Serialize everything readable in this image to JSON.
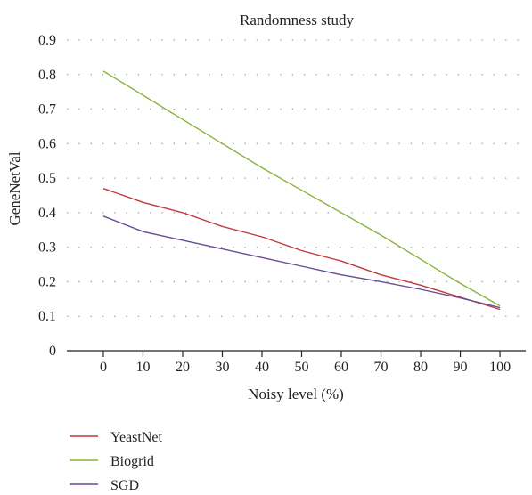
{
  "chart_data": {
    "type": "line",
    "title": "Randomness study",
    "xlabel": "Noisy level (%)",
    "ylabel": "GeneNetVal",
    "x": [
      0,
      10,
      20,
      30,
      40,
      50,
      60,
      70,
      80,
      90,
      100
    ],
    "xticks": [
      "0",
      "10",
      "20",
      "30",
      "40",
      "50",
      "60",
      "70",
      "80",
      "90",
      "100"
    ],
    "yticks": [
      "0",
      "0.1",
      "0.2",
      "0.3",
      "0.4",
      "0.5",
      "0.6",
      "0.7",
      "0.8",
      "0.9"
    ],
    "xlim": [
      -9.2,
      106.5
    ],
    "ylim": [
      0,
      0.9
    ],
    "grid": true,
    "legend_position": "bottom-left",
    "series": [
      {
        "name": "YeastNet",
        "color": "#c0393b",
        "values": [
          0.47,
          0.43,
          0.4,
          0.36,
          0.33,
          0.29,
          0.26,
          0.22,
          0.19,
          0.155,
          0.12
        ]
      },
      {
        "name": "Biogrid",
        "color": "#8ab43a",
        "values": [
          0.81,
          0.74,
          0.67,
          0.6,
          0.53,
          0.465,
          0.4,
          0.335,
          0.265,
          0.195,
          0.13
        ]
      },
      {
        "name": "SGD",
        "color": "#6a4c94",
        "values": [
          0.39,
          0.345,
          0.32,
          0.295,
          0.27,
          0.245,
          0.22,
          0.2,
          0.178,
          0.153,
          0.125
        ]
      }
    ]
  }
}
